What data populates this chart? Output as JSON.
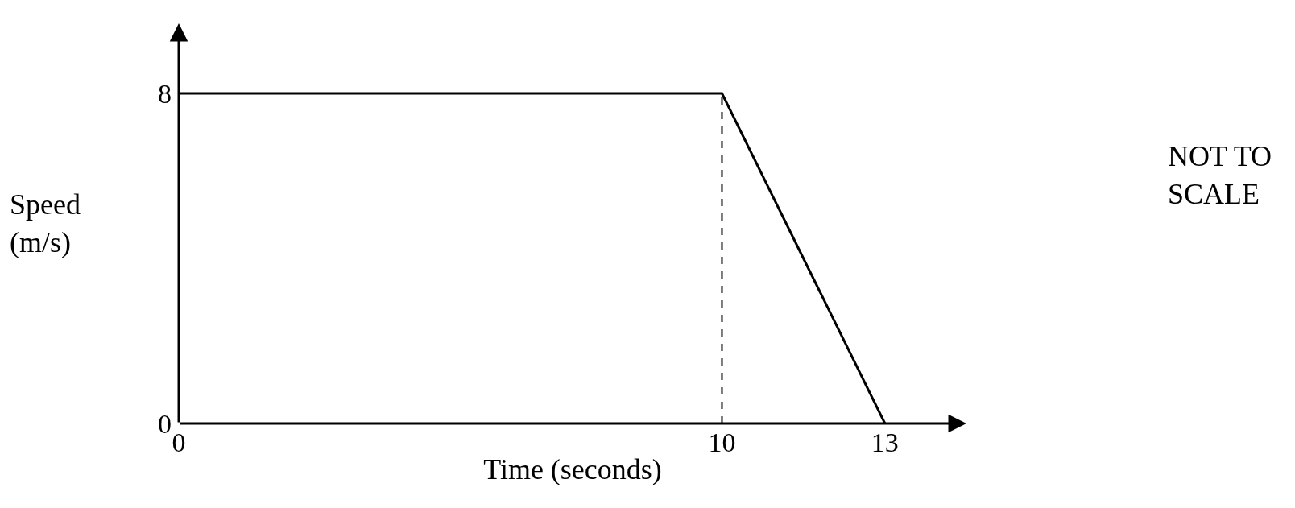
{
  "chart_data": {
    "type": "line",
    "xlabel": "Time (seconds)",
    "ylabel": "Speed\n(m/s)",
    "x": [
      0,
      10,
      13
    ],
    "series": [
      {
        "color": "#000000",
        "values": [
          8,
          8,
          0
        ]
      }
    ],
    "xlim": [
      0,
      14.5
    ],
    "ylim": [
      0,
      9.7
    ],
    "xticks": [
      0,
      10,
      13
    ],
    "yticks": [
      0,
      8
    ],
    "ref_lines": [
      {
        "axis": "x",
        "value": 10,
        "color": "#000000",
        "line_style": "dashed"
      }
    ],
    "annotations": [
      "NOT TO\nSCALE"
    ],
    "grid": false,
    "legend": false,
    "marker": "none",
    "line_style": "solid"
  }
}
